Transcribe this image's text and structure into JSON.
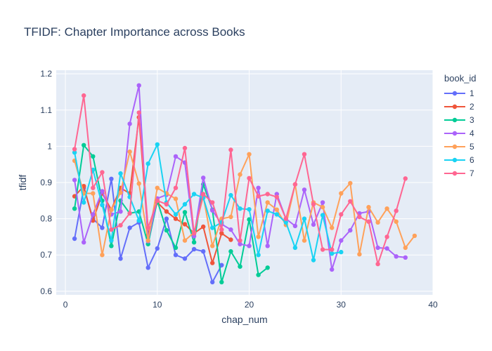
{
  "chart_data": {
    "type": "line",
    "title": "TFIDF: Chapter Importance across Books",
    "xlabel": "chap_num",
    "ylabel": "tfidf",
    "xlim": [
      -1,
      40
    ],
    "ylim": [
      0.59,
      1.21
    ],
    "xticks": [
      0,
      10,
      20,
      30,
      40
    ],
    "yticks": [
      0.6,
      0.7,
      0.8,
      0.9,
      1,
      1.1,
      1.2
    ],
    "ytick_labels": [
      "0.6",
      "0.7",
      "0.8",
      "0.9",
      "1",
      "1.1",
      "1.2"
    ],
    "grid": true,
    "legend_title": "book_id",
    "legend_position": "right",
    "series": [
      {
        "name": "1",
        "color": "#636efa",
        "x": [
          1,
          2,
          3,
          4,
          5,
          6,
          7,
          8,
          9,
          10,
          11,
          12,
          13,
          14,
          15,
          16,
          17
        ],
        "y": [
          0.745,
          0.885,
          0.8,
          0.775,
          0.91,
          0.69,
          0.775,
          0.79,
          0.665,
          0.718,
          0.8,
          0.7,
          0.69,
          0.716,
          0.71,
          0.625,
          0.672
        ]
      },
      {
        "name": "2",
        "color": "#ef553b",
        "x": [
          1,
          2,
          3,
          4,
          5,
          6,
          7,
          8,
          9,
          10,
          11,
          12,
          13,
          14,
          15,
          16,
          17,
          18
        ],
        "y": [
          0.862,
          0.89,
          0.795,
          0.87,
          0.825,
          0.885,
          0.87,
          1.08,
          0.755,
          0.845,
          0.82,
          0.8,
          0.785,
          0.76,
          0.778,
          0.678,
          0.76,
          0.742
        ]
      },
      {
        "name": "3",
        "color": "#00cc96",
        "x": [
          1,
          2,
          3,
          4,
          5,
          6,
          7,
          8,
          9,
          10,
          11,
          12,
          13,
          14,
          15,
          16,
          17,
          18,
          19,
          20,
          21,
          22
        ],
        "y": [
          0.828,
          1.003,
          0.972,
          0.85,
          0.725,
          0.85,
          0.815,
          0.82,
          0.73,
          0.85,
          0.768,
          0.72,
          0.818,
          0.735,
          0.895,
          0.825,
          0.625,
          0.71,
          0.668,
          0.798,
          0.645,
          0.665
        ]
      },
      {
        "name": "4",
        "color": "#ab63fa",
        "x": [
          1,
          2,
          3,
          4,
          5,
          6,
          7,
          8,
          9,
          10,
          11,
          12,
          13,
          14,
          15,
          16,
          17,
          18,
          19,
          20,
          21,
          22,
          23,
          24,
          25,
          26,
          27,
          28,
          29,
          30,
          31,
          32,
          33,
          34,
          35,
          36,
          37
        ],
        "y": [
          0.907,
          0.735,
          0.812,
          0.876,
          0.812,
          0.82,
          1.062,
          1.168,
          0.738,
          0.856,
          0.866,
          0.972,
          0.955,
          0.752,
          0.913,
          0.823,
          0.785,
          0.77,
          0.73,
          0.725,
          0.885,
          0.725,
          0.868,
          0.8,
          0.78,
          0.88,
          0.784,
          0.845,
          0.66,
          0.74,
          0.768,
          0.815,
          0.82,
          0.72,
          0.718,
          0.696,
          0.693
        ]
      },
      {
        "name": "5",
        "color": "#ffa15a",
        "x": [
          1,
          2,
          3,
          4,
          5,
          6,
          7,
          8,
          9,
          10,
          11,
          12,
          13,
          14,
          15,
          16,
          17,
          18,
          19,
          20,
          21,
          22,
          23,
          24,
          25,
          26,
          27,
          28,
          29,
          30,
          31,
          32,
          33,
          34,
          35,
          36,
          37,
          38
        ],
        "y": [
          0.96,
          0.87,
          0.87,
          0.7,
          0.825,
          0.872,
          0.985,
          0.897,
          0.74,
          0.885,
          0.87,
          0.855,
          0.74,
          0.762,
          0.862,
          0.725,
          0.8,
          0.805,
          0.922,
          0.978,
          0.75,
          0.845,
          0.825,
          0.783,
          0.895,
          0.74,
          0.845,
          0.832,
          0.775,
          0.87,
          0.898,
          0.702,
          0.832,
          0.79,
          0.828,
          0.792,
          0.72,
          0.753
        ]
      },
      {
        "name": "6",
        "color": "#19d3f3",
        "x": [
          1,
          2,
          3,
          4,
          5,
          6,
          7,
          8,
          9,
          10,
          11,
          12,
          13,
          14,
          15,
          16,
          17,
          18,
          19,
          20,
          21,
          22,
          23,
          24,
          25,
          26,
          27,
          28,
          29,
          30
        ],
        "y": [
          0.983,
          0.845,
          0.935,
          0.838,
          0.74,
          0.925,
          0.86,
          0.795,
          0.952,
          1.005,
          0.845,
          0.812,
          0.84,
          0.868,
          0.858,
          0.775,
          0.79,
          0.865,
          0.828,
          0.826,
          0.7,
          0.822,
          0.812,
          0.79,
          0.72,
          0.8,
          0.686,
          0.81,
          0.704,
          0.708
        ]
      },
      {
        "name": "7",
        "color": "#ff6692",
        "x": [
          1,
          2,
          3,
          4,
          5,
          6,
          7,
          8,
          9,
          10,
          11,
          12,
          13,
          14,
          15,
          16,
          17,
          18,
          19,
          20,
          21,
          22,
          23,
          24,
          25,
          26,
          27,
          28,
          29,
          30,
          31,
          32,
          33,
          34,
          35,
          36,
          37
        ],
        "y": [
          0.992,
          1.14,
          0.885,
          0.928,
          0.77,
          0.782,
          0.815,
          1.093,
          0.775,
          0.85,
          0.84,
          0.885,
          0.995,
          0.76,
          0.868,
          0.845,
          0.77,
          0.99,
          0.74,
          0.912,
          0.862,
          0.868,
          0.86,
          0.8,
          0.895,
          0.978,
          0.84,
          0.715,
          0.715,
          0.812,
          0.848,
          0.805,
          0.792,
          0.675,
          0.75,
          0.822,
          0.911
        ]
      }
    ]
  }
}
